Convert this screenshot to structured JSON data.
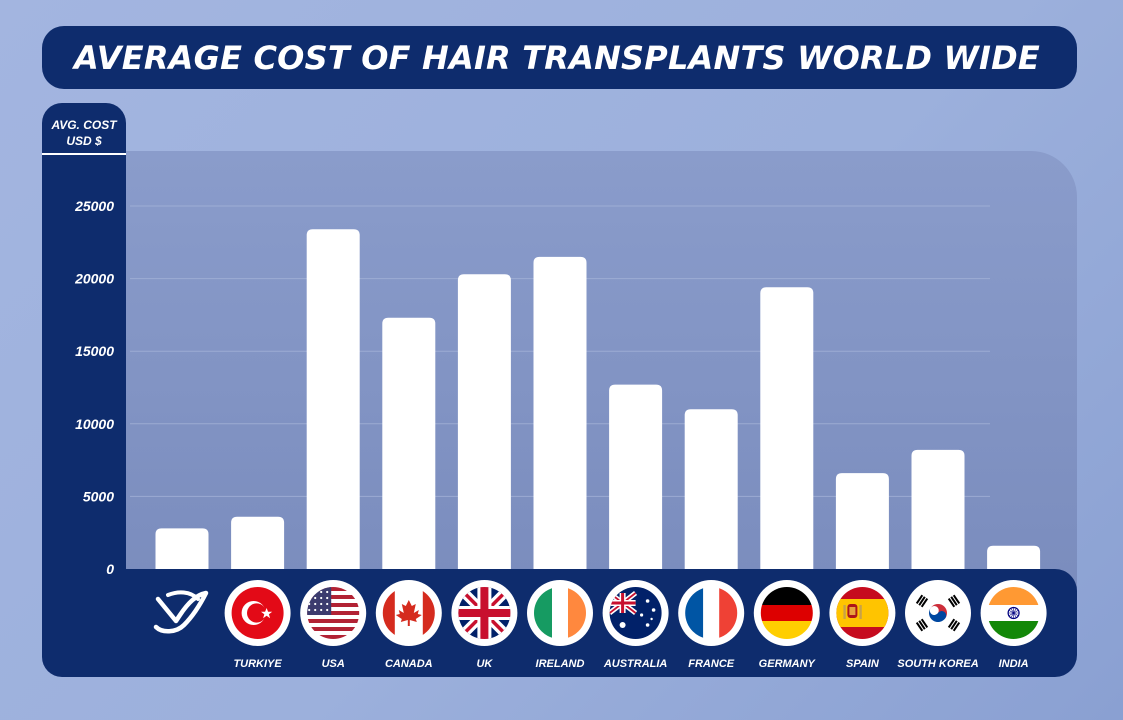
{
  "header": {
    "title": "AVERAGE COST OF HAIR TRANSPLANTS WORLD WIDE"
  },
  "y_axis": {
    "label_line1": "AVG. COST",
    "label_line2": "USD $"
  },
  "colors": {
    "navy": "#0e2c6d",
    "bar": "#ffffff",
    "plot_background": "#8193c4"
  },
  "chart_data": {
    "type": "bar",
    "title": "AVERAGE COST OF HAIR TRANSPLANTS WORLD WIDE",
    "ylabel": "AVG. COST USD $",
    "xlabel": "",
    "ylim": [
      0,
      25000
    ],
    "yticks": [
      0,
      5000,
      10000,
      15000,
      20000,
      25000
    ],
    "grid": true,
    "categories": [
      "",
      "TURKIYE",
      "USA",
      "CANADA",
      "UK",
      "IRELAND",
      "AUSTRALIA",
      "FRANCE",
      "GERMANY",
      "SPAIN",
      "SOUTH KOREA",
      "INDIA"
    ],
    "values": [
      2800,
      3600,
      23400,
      17300,
      20300,
      21500,
      12700,
      11000,
      19400,
      6600,
      8200,
      1600
    ],
    "flag_icons": [
      "brand-logo-icon",
      "turkey-flag-icon",
      "usa-flag-icon",
      "canada-flag-icon",
      "uk-flag-icon",
      "ireland-flag-icon",
      "australia-flag-icon",
      "france-flag-icon",
      "germany-flag-icon",
      "spain-flag-icon",
      "south-korea-flag-icon",
      "india-flag-icon"
    ]
  }
}
